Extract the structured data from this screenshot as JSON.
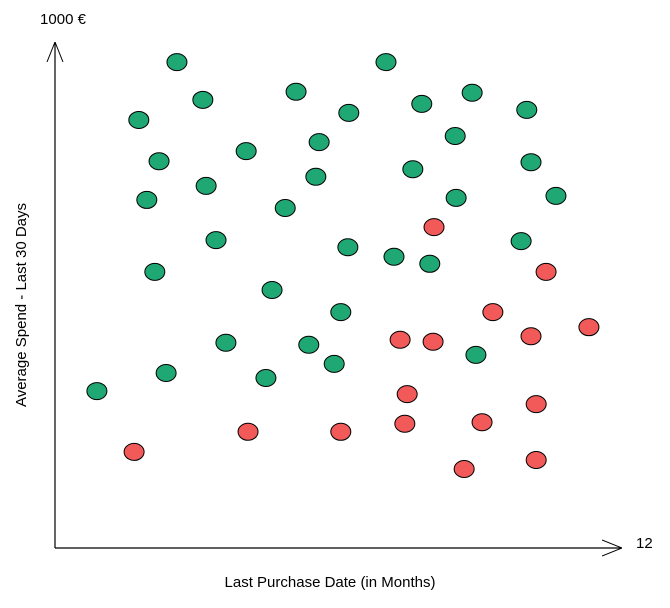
{
  "chart_data": {
    "type": "scatter",
    "x_label": "Last Purchase Date (in Months)",
    "y_label": "Average Spend - Last 30 Days",
    "xlim": [
      0,
      12
    ],
    "ylim": [
      0,
      1000
    ],
    "xticks": [
      12
    ],
    "yticks": [
      {
        "value": 1000,
        "label": "1000 €"
      }
    ],
    "series": [
      {
        "color": "#1fa874",
        "x": [
          2.59,
          7.03,
          3.14,
          5.12,
          8.86,
          7.79,
          6.24,
          10.02,
          1.78,
          8.5,
          5.61,
          4.06,
          2.21,
          10.11,
          7.6,
          5.54,
          3.21,
          1.95,
          8.52,
          10.64,
          4.89,
          3.42,
          9.9,
          6.22,
          7.2,
          7.96,
          2.12,
          4.61,
          6.07,
          3.63,
          5.39,
          8.94,
          5.93,
          2.36,
          4.48,
          0.89
        ],
        "values": [
          966,
          966,
          891,
          907,
          905,
          883,
          865,
          871,
          851,
          819,
          807,
          789,
          769,
          767,
          753,
          738,
          720,
          692,
          696,
          700,
          676,
          612,
          610,
          598,
          579,
          565,
          549,
          513,
          469,
          408,
          404,
          384,
          366,
          348,
          338,
          312
        ]
      },
      {
        "color": "#f25a5a",
        "x": [
          8.05,
          10.43,
          9.3,
          11.34,
          7.33,
          8.03,
          10.11,
          7.48,
          10.22,
          1.68,
          4.1,
          6.07,
          7.43,
          9.07,
          10.22,
          8.69
        ],
        "values": [
          638,
          549,
          469,
          439,
          414,
          410,
          421,
          306,
          286,
          191,
          231,
          231,
          247,
          250,
          175,
          157
        ]
      }
    ]
  }
}
